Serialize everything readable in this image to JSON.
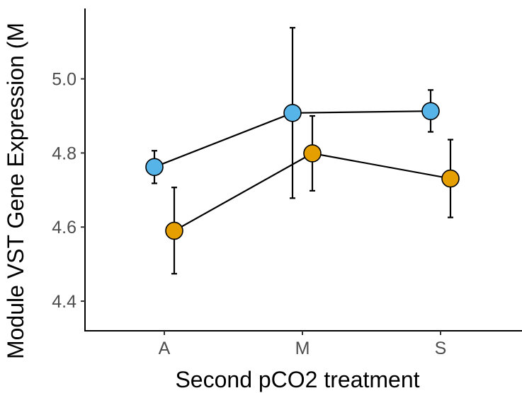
{
  "chart_data": {
    "type": "line",
    "title": "",
    "xlabel": "Second pCO2 treatment",
    "ylabel": "Module VST Gene Expression (M",
    "categories": [
      "A",
      "M",
      "S"
    ],
    "yticks": [
      "4.4",
      "4.6",
      "4.8",
      "5.0"
    ],
    "ylim": [
      4.32,
      5.19
    ],
    "grid": false,
    "legend": "none",
    "series": [
      {
        "color": "#56B4E9",
        "offset": -1,
        "values": [
          4.762,
          4.908,
          4.913
        ],
        "error_low": [
          4.718,
          4.678,
          4.857
        ],
        "error_high": [
          4.806,
          5.138,
          4.97
        ]
      },
      {
        "color": "#E69F00",
        "offset": 1,
        "values": [
          4.59,
          4.799,
          4.731
        ],
        "error_low": [
          4.474,
          4.698,
          4.626
        ],
        "error_high": [
          4.707,
          4.9,
          4.836
        ]
      }
    ]
  }
}
